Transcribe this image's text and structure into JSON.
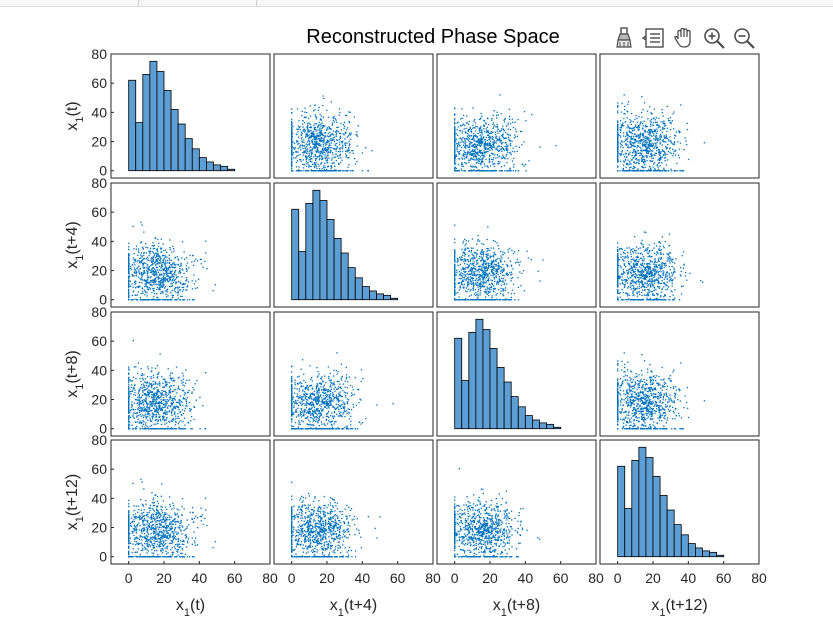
{
  "figure": {
    "title": "Reconstructed Phase Space"
  },
  "toolbar": {
    "items": [
      "brush-icon",
      "data-tips-icon",
      "pan-hand-icon",
      "zoom-in-icon",
      "zoom-out-icon"
    ]
  },
  "colors": {
    "bar_face": "#5d9fd4",
    "bar_edge": "#000000",
    "point": "#0072bd",
    "axes_edge": "#262626"
  },
  "chart_data": {
    "type": "scatter",
    "title": "Reconstructed Phase Space",
    "variables": [
      "x1(t)",
      "x1(t+4)",
      "x1(t+8)",
      "x1(t+12)"
    ],
    "row_labels": [
      {
        "base": "x",
        "sub": "1",
        "suffix": "(t)"
      },
      {
        "base": "x",
        "sub": "1",
        "suffix": "(t+4)"
      },
      {
        "base": "x",
        "sub": "1",
        "suffix": "(t+8)"
      },
      {
        "base": "x",
        "sub": "1",
        "suffix": "(t+12)"
      }
    ],
    "col_labels": [
      {
        "base": "x",
        "sub": "1",
        "suffix": "(t)"
      },
      {
        "base": "x",
        "sub": "1",
        "suffix": "(t+4)"
      },
      {
        "base": "x",
        "sub": "1",
        "suffix": "(t+8)"
      },
      {
        "base": "x",
        "sub": "1",
        "suffix": "(t+12)"
      }
    ],
    "xlim": [
      -10,
      80
    ],
    "ylim": [
      -5,
      80
    ],
    "xticks": [
      0,
      20,
      40,
      60,
      80
    ],
    "yticks": [
      0,
      20,
      40,
      60,
      80
    ],
    "grid": false,
    "diagonal": "histogram",
    "histogram": {
      "bin_edges": [
        0,
        4,
        8,
        12,
        16,
        20,
        24,
        28,
        32,
        36,
        40,
        44,
        48,
        52,
        56,
        60
      ],
      "counts": [
        62,
        33,
        66,
        75,
        68,
        55,
        42,
        32,
        22,
        15,
        9,
        6,
        4,
        3,
        1
      ]
    },
    "scatter_cloud": {
      "center": [
        12,
        15
      ],
      "spread_x": 13,
      "spread_y": 13,
      "n_points": 900,
      "x_range": [
        0,
        70
      ],
      "y_range": [
        0,
        72
      ]
    }
  }
}
